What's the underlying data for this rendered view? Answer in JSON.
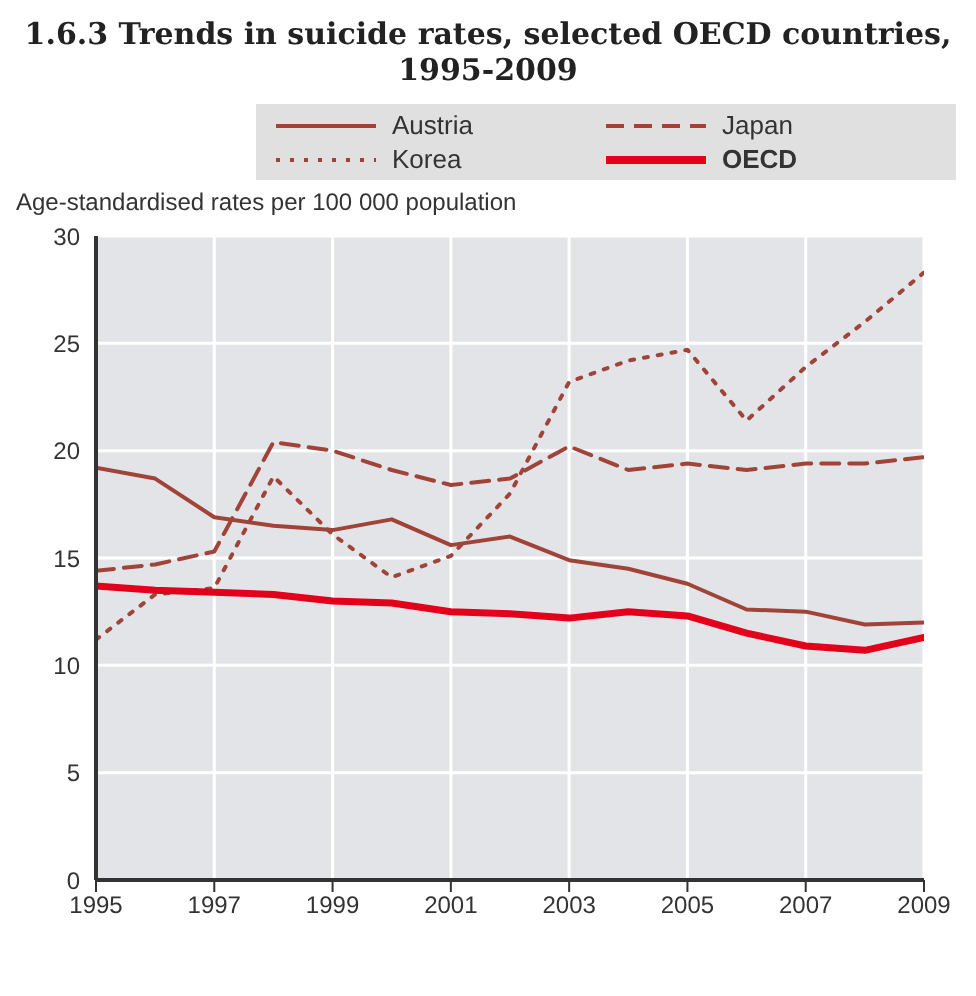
{
  "chart_data": {
    "type": "line",
    "title": "1.6.3 Trends in suicide rates, selected OECD countries, 1995-2009",
    "ylabel": "Age-standardised rates per 100 000 population",
    "x": [
      1995,
      1996,
      1997,
      1998,
      1999,
      2000,
      2001,
      2002,
      2003,
      2004,
      2005,
      2006,
      2007,
      2008,
      2009
    ],
    "series": [
      {
        "name": "Austria",
        "color": "#a0443a",
        "line_style": "solid",
        "values": [
          19.2,
          18.7,
          16.9,
          16.5,
          16.3,
          16.8,
          15.6,
          16.0,
          14.9,
          14.5,
          13.8,
          12.6,
          12.5,
          11.9,
          12.0
        ]
      },
      {
        "name": "Japan",
        "color": "#a0443a",
        "line_style": "dashed",
        "values": [
          14.4,
          14.7,
          15.3,
          20.4,
          20.0,
          19.1,
          18.4,
          18.7,
          20.2,
          19.1,
          19.4,
          19.1,
          19.4,
          19.4,
          19.7
        ]
      },
      {
        "name": "Korea",
        "color": "#a0443a",
        "line_style": "dotted",
        "values": [
          11.2,
          13.3,
          13.6,
          18.8,
          16.1,
          14.1,
          15.1,
          18.0,
          23.2,
          24.2,
          24.7,
          21.4,
          23.9,
          26.0,
          28.3
        ]
      },
      {
        "name": "OECD",
        "color": "#e3001b",
        "line_style": "solid",
        "values": [
          13.7,
          13.5,
          13.4,
          13.3,
          13.0,
          12.9,
          12.5,
          12.4,
          12.2,
          12.5,
          12.3,
          11.5,
          10.9,
          10.7,
          11.3
        ]
      }
    ],
    "xlim": [
      1995,
      2009
    ],
    "xticks": [
      1995,
      1997,
      1999,
      2001,
      2003,
      2005,
      2007,
      2009
    ],
    "ylim": [
      0,
      30
    ],
    "yticks": [
      0,
      5,
      10,
      15,
      20,
      25,
      30
    ],
    "grid": true,
    "legend": "top",
    "marker": "none"
  }
}
